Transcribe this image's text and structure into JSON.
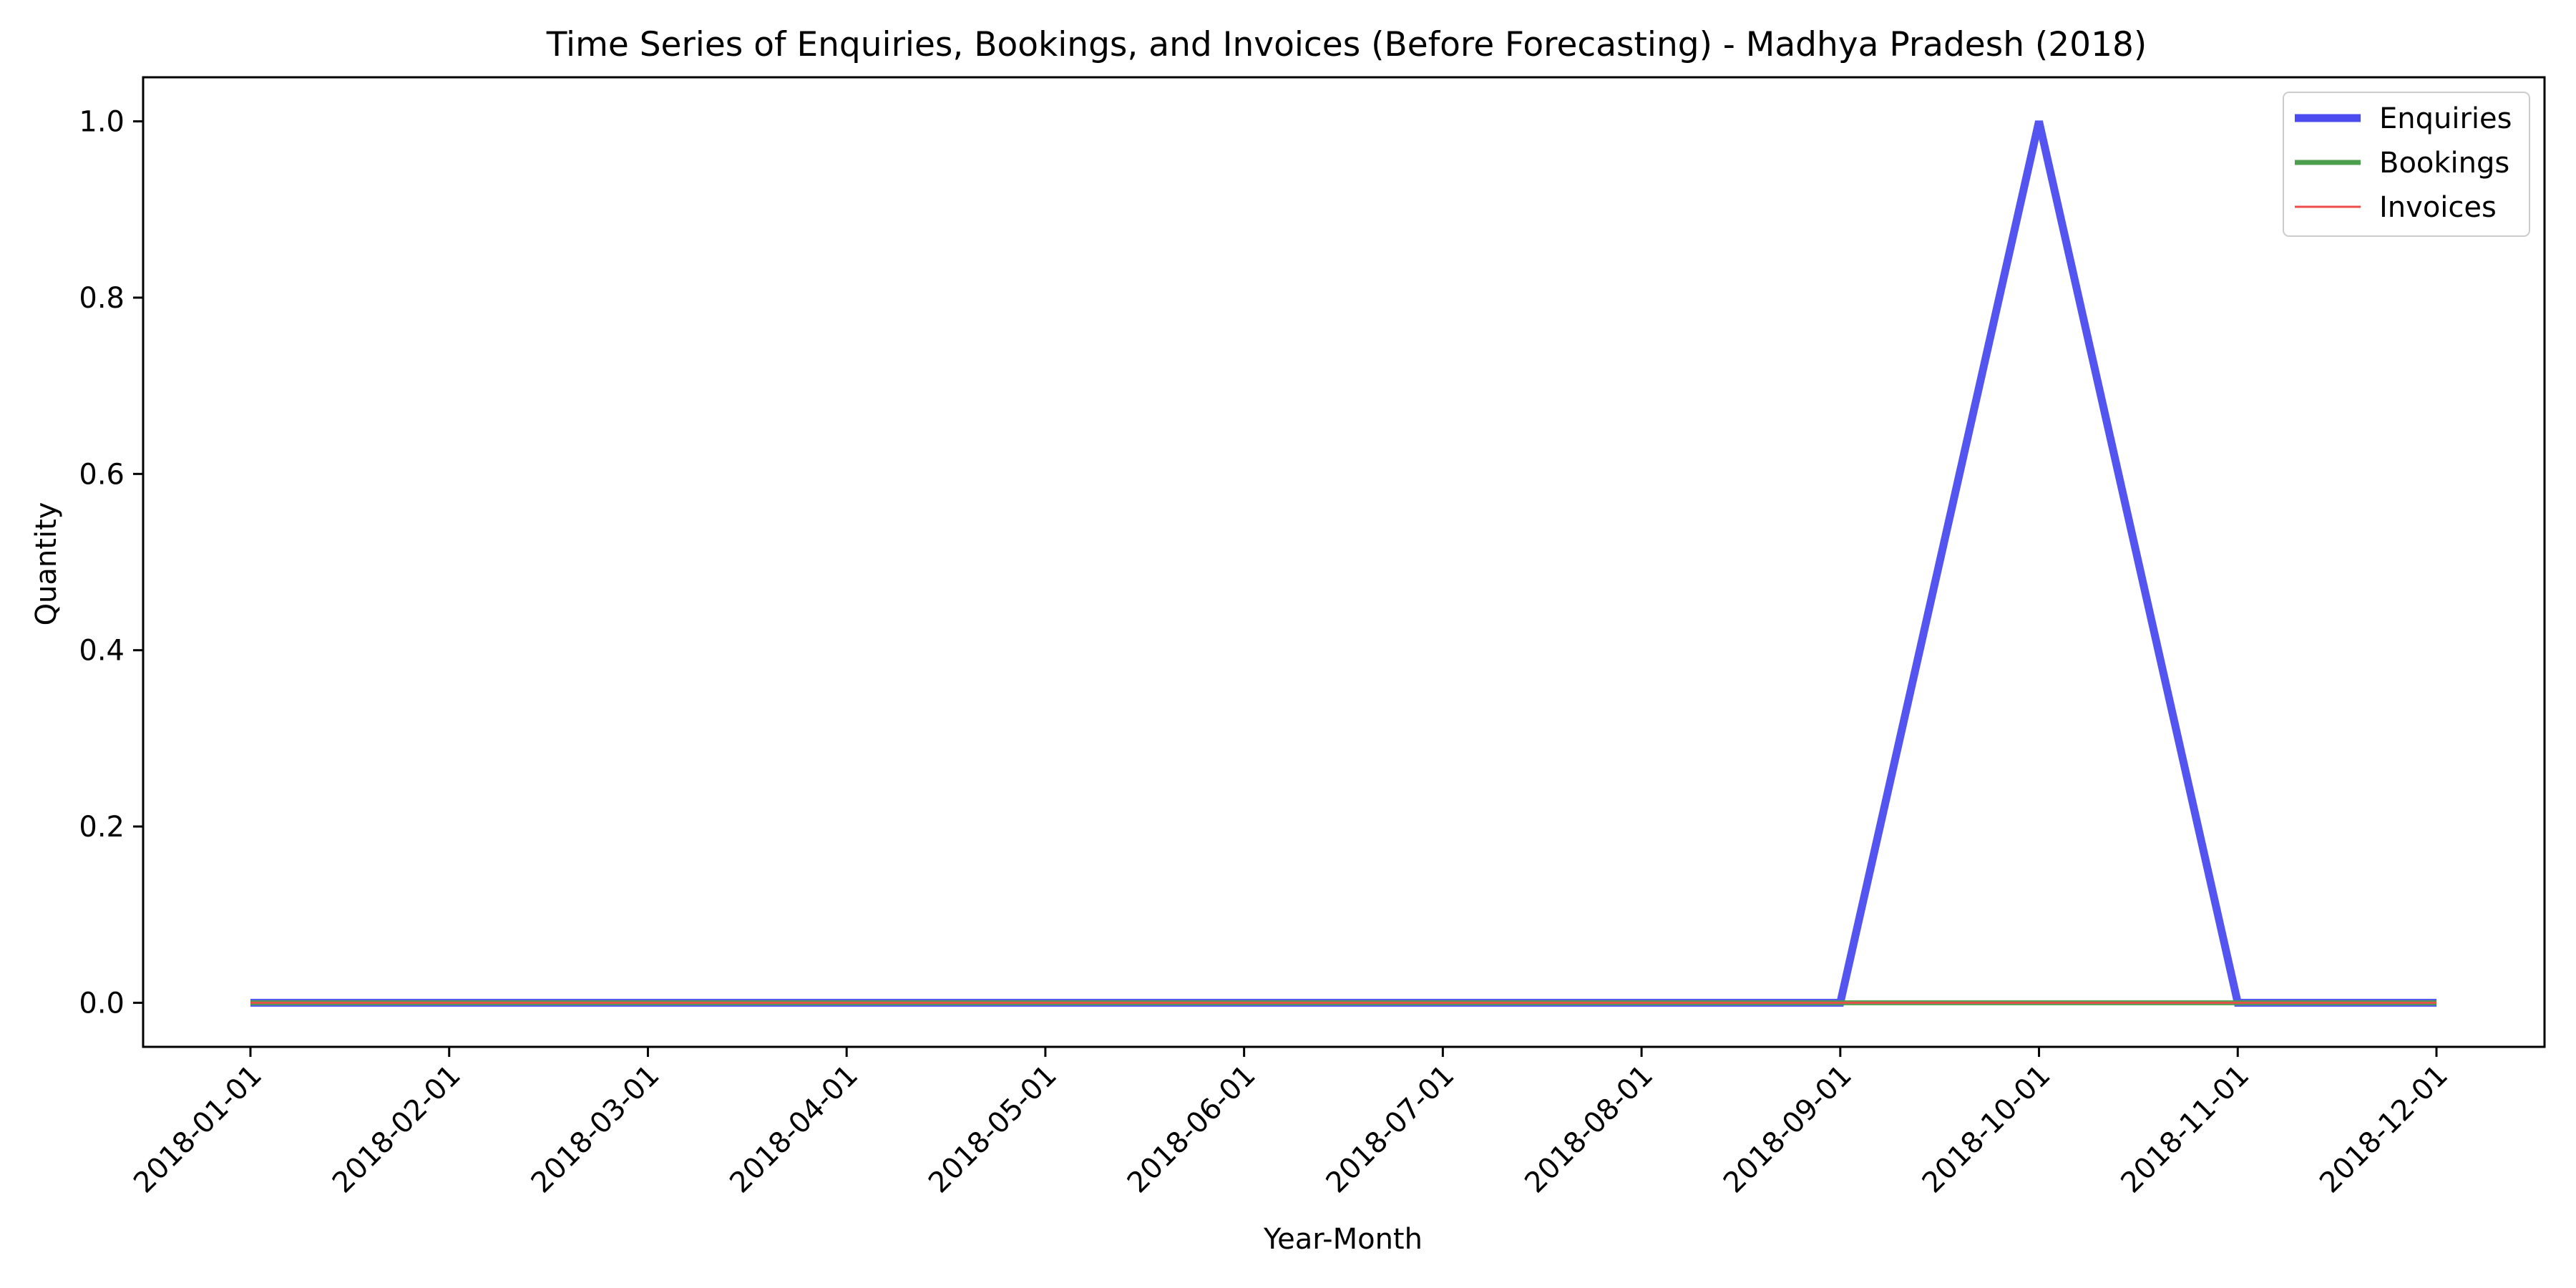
{
  "chart_data": {
    "type": "line",
    "title": "Time Series of Enquiries, Bookings, and Invoices (Before Forecasting) - Madhya Pradesh (2018)",
    "xlabel": "Year-Month",
    "ylabel": "Quantity",
    "x": [
      "2018-01-01",
      "2018-02-01",
      "2018-03-01",
      "2018-04-01",
      "2018-05-01",
      "2018-06-01",
      "2018-07-01",
      "2018-08-01",
      "2018-09-01",
      "2018-10-01",
      "2018-11-01",
      "2018-12-01"
    ],
    "ylim": [
      -0.05,
      1.05
    ],
    "yticks": [
      0.0,
      0.2,
      0.4,
      0.6,
      0.8,
      1.0
    ],
    "ytick_labels": [
      "0.0",
      "0.2",
      "0.4",
      "0.6",
      "0.8",
      "1.0"
    ],
    "grid": false,
    "legend_position": "top-right",
    "series": [
      {
        "name": "Enquiries",
        "color": "#4b4bef",
        "values": [
          0,
          0,
          0,
          0,
          0,
          0,
          0,
          0,
          0,
          1,
          0,
          0
        ]
      },
      {
        "name": "Bookings",
        "color": "#4c9f4c",
        "values": [
          0,
          0,
          0,
          0,
          0,
          0,
          0,
          0,
          0,
          0,
          0,
          0
        ]
      },
      {
        "name": "Invoices",
        "color": "#ef4b4b",
        "values": [
          0,
          0,
          0,
          0,
          0,
          0,
          0,
          0,
          0,
          0,
          0,
          0
        ]
      }
    ]
  }
}
